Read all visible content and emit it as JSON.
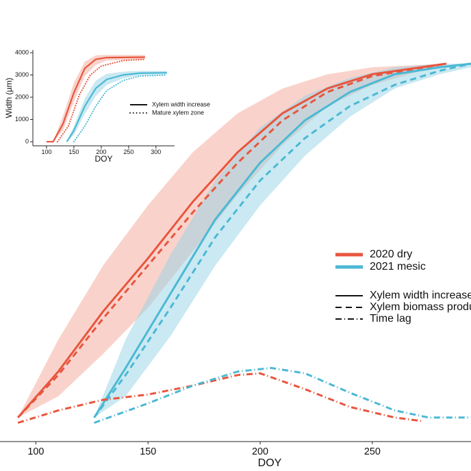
{
  "chart_data": [
    {
      "type": "line",
      "x_label": "DOY",
      "xlim": [
        84,
        294
      ],
      "ylim": [
        -0.068,
        1.18
      ],
      "xticks": [
        100,
        150,
        200,
        250
      ],
      "bands": [
        {
          "color": "#f4a898",
          "x": [
            92,
            110,
            130,
            150,
            170,
            190,
            210,
            230,
            250,
            283
          ],
          "lower": [
            0,
            0.06,
            0.18,
            0.31,
            0.47,
            0.63,
            0.77,
            0.88,
            0.94,
            1.0
          ],
          "upper": [
            0,
            0.22,
            0.43,
            0.6,
            0.75,
            0.86,
            0.93,
            0.97,
            0.99,
            1.0
          ]
        },
        {
          "color": "#95d3e6",
          "x": [
            126,
            140,
            160,
            180,
            200,
            220,
            240,
            260,
            280,
            294
          ],
          "lower": [
            0,
            0.06,
            0.23,
            0.43,
            0.6,
            0.74,
            0.85,
            0.93,
            0.97,
            0.99
          ],
          "upper": [
            0,
            0.22,
            0.46,
            0.67,
            0.82,
            0.91,
            0.96,
            0.99,
            1.0,
            1.0
          ]
        }
      ],
      "series": [
        {
          "color": "#e8553e",
          "linestyle": "solid",
          "x": [
            92,
            110,
            130,
            150,
            170,
            190,
            210,
            230,
            250,
            283
          ],
          "values": [
            0,
            0.13,
            0.3,
            0.45,
            0.61,
            0.75,
            0.86,
            0.93,
            0.97,
            1.0
          ]
        },
        {
          "color": "#e8553e",
          "linestyle": "dashed",
          "x": [
            92,
            110,
            130,
            150,
            170,
            190,
            210,
            230,
            250,
            283
          ],
          "values": [
            0,
            0.12,
            0.28,
            0.43,
            0.58,
            0.72,
            0.84,
            0.92,
            0.965,
            1.0
          ]
        },
        {
          "color": "#4bb8d4",
          "linestyle": "solid",
          "x": [
            126,
            140,
            160,
            180,
            200,
            220,
            240,
            260,
            280,
            294
          ],
          "values": [
            0,
            0.14,
            0.35,
            0.56,
            0.72,
            0.84,
            0.92,
            0.97,
            0.99,
            1.0
          ]
        },
        {
          "color": "#4bb8d4",
          "linestyle": "dashed",
          "x": [
            126,
            140,
            160,
            180,
            200,
            220,
            240,
            260,
            280,
            294
          ],
          "values": [
            0,
            0.12,
            0.31,
            0.51,
            0.67,
            0.79,
            0.88,
            0.94,
            0.98,
            1.0
          ]
        },
        {
          "color": "#e8553e",
          "linestyle": "dashdot",
          "x": [
            92,
            110,
            130,
            150,
            170,
            190,
            200,
            220,
            240,
            260,
            272
          ],
          "values": [
            -0.015,
            0.02,
            0.05,
            0.065,
            0.09,
            0.12,
            0.125,
            0.08,
            0.03,
            0.0,
            -0.01
          ]
        },
        {
          "color": "#4bb8d4",
          "linestyle": "dashdot",
          "x": [
            126,
            150,
            170,
            190,
            205,
            220,
            240,
            260,
            275,
            294
          ],
          "values": [
            -0.015,
            0.04,
            0.09,
            0.13,
            0.14,
            0.125,
            0.07,
            0.02,
            0.0,
            0.0
          ]
        }
      ],
      "legend_colors": [
        {
          "label": "2020 dry",
          "color": "#e8553e"
        },
        {
          "label": "2021 mesic",
          "color": "#4bb8d4"
        }
      ],
      "legend_styles": [
        {
          "label": "Xylem width increase",
          "linestyle": "solid"
        },
        {
          "label": "Xylem biomass production",
          "linestyle": "dashed"
        },
        {
          "label": "Time lag",
          "linestyle": "dashdot"
        }
      ]
    },
    {
      "type": "line",
      "x_label": "DOY",
      "y_label": "Width (µm)",
      "xlim": [
        75,
        334
      ],
      "ylim": [
        -185,
        4123
      ],
      "xticks": [
        100,
        150,
        200,
        250,
        300
      ],
      "yticks": [
        0,
        1000,
        2000,
        3000,
        4000
      ],
      "bands": [
        {
          "color": "#f4a898",
          "x": [
            100,
            112,
            130,
            150,
            170,
            190,
            210,
            280
          ],
          "lower": [
            0,
            0,
            500,
            1800,
            2950,
            3450,
            3650,
            3700
          ],
          "upper": [
            0,
            0,
            1150,
            2650,
            3600,
            3880,
            3900,
            3900
          ]
        },
        {
          "color": "#95d3e6",
          "x": [
            137,
            150,
            170,
            190,
            210,
            240,
            270,
            320
          ],
          "lower": [
            0,
            300,
            1250,
            2050,
            2550,
            2850,
            2980,
            3020
          ],
          "upper": [
            0,
            700,
            1950,
            2750,
            3050,
            3150,
            3180,
            3180
          ]
        }
      ],
      "series": [
        {
          "color": "#e8553e",
          "linestyle": "solid",
          "x": [
            100,
            112,
            130,
            150,
            170,
            190,
            210,
            280
          ],
          "values": [
            0,
            0,
            800,
            2200,
            3300,
            3700,
            3780,
            3800
          ]
        },
        {
          "color": "#e8553e",
          "linestyle": "dotted",
          "x": [
            120,
            140,
            160,
            180,
            200,
            240,
            280
          ],
          "values": [
            0,
            700,
            2100,
            3000,
            3400,
            3650,
            3700
          ]
        },
        {
          "color": "#4bb8d4",
          "linestyle": "solid",
          "x": [
            137,
            150,
            170,
            190,
            210,
            240,
            270,
            320
          ],
          "values": [
            0,
            500,
            1600,
            2400,
            2800,
            3000,
            3080,
            3100
          ]
        },
        {
          "color": "#4bb8d4",
          "linestyle": "dotted",
          "x": [
            150,
            170,
            190,
            210,
            240,
            270,
            320
          ],
          "values": [
            0,
            700,
            1600,
            2300,
            2750,
            2950,
            3000
          ]
        }
      ],
      "legend_styles": [
        {
          "label": "Xylem width increase",
          "linestyle": "solid"
        },
        {
          "label": "Mature xylem zone",
          "linestyle": "dotted"
        }
      ]
    }
  ]
}
